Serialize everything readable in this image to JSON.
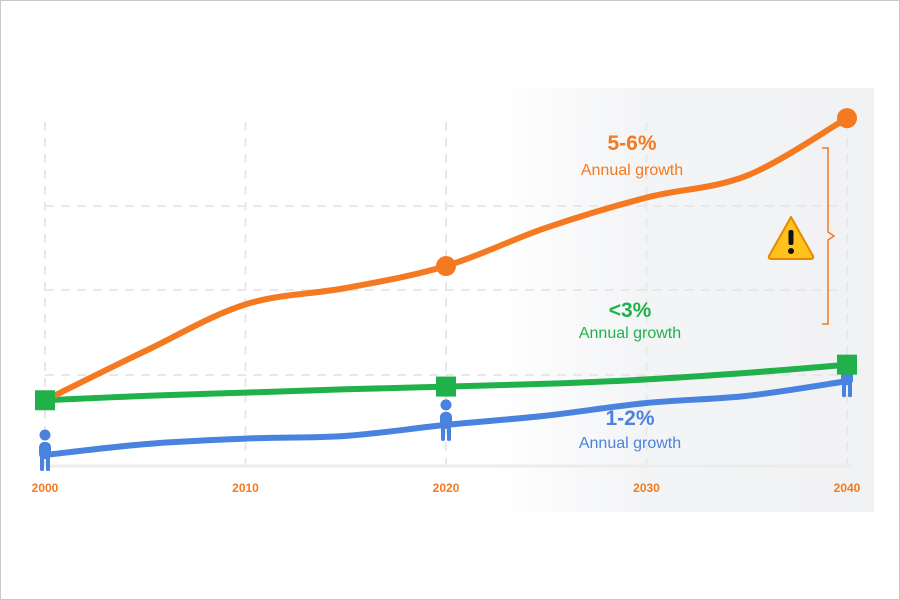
{
  "chart_data": {
    "type": "line",
    "x": [
      2000,
      2010,
      2020,
      2030,
      2040
    ],
    "x_tick_labels": [
      "2000",
      "2010",
      "2020",
      "2030",
      "2040"
    ],
    "series": [
      {
        "key": "orange",
        "rate": "5-6%",
        "label": "Annual growth",
        "color": "#f47920",
        "marker": "circle",
        "points": [
          [
            2000,
            1.0
          ],
          [
            2005,
            1.9
          ],
          [
            2010,
            2.75
          ],
          [
            2015,
            3.05
          ],
          [
            2020,
            3.45
          ],
          [
            2025,
            4.15
          ],
          [
            2030,
            4.7
          ],
          [
            2035,
            5.1
          ],
          [
            2040,
            6.15
          ]
        ],
        "marker_x": [
          2020,
          2040
        ]
      },
      {
        "key": "green",
        "rate": "<3%",
        "label": "Annual growth",
        "color": "#21b14b",
        "marker": "square",
        "points": [
          [
            2000,
            1.0
          ],
          [
            2005,
            1.08
          ],
          [
            2010,
            1.14
          ],
          [
            2015,
            1.2
          ],
          [
            2020,
            1.25
          ],
          [
            2025,
            1.3
          ],
          [
            2030,
            1.38
          ],
          [
            2035,
            1.5
          ],
          [
            2040,
            1.65
          ]
        ],
        "marker_x": [
          2000,
          2020,
          2040
        ]
      },
      {
        "key": "blue",
        "rate": "1-2%",
        "label": "Annual growth",
        "color": "#4a82e0",
        "marker": "person",
        "points": [
          [
            2000,
            0.0
          ],
          [
            2005,
            0.2
          ],
          [
            2010,
            0.3
          ],
          [
            2015,
            0.35
          ],
          [
            2020,
            0.55
          ],
          [
            2025,
            0.72
          ],
          [
            2030,
            0.95
          ],
          [
            2035,
            1.08
          ],
          [
            2040,
            1.35
          ]
        ],
        "marker_x": [
          2000,
          2020,
          2040
        ]
      }
    ],
    "xlim": [
      2000,
      2040
    ],
    "ylim": [
      -0.2,
      6.7
    ],
    "grid": true,
    "annotation": {
      "type": "warning",
      "x": 2040
    }
  },
  "colors": {
    "tick": "#f47920",
    "grid": "#e8e8e8",
    "warning_fill": "#ffc21a",
    "warning_stroke": "#e48a00"
  },
  "icons": {
    "warning": "warning-triangle-icon",
    "person": "person-icon"
  }
}
